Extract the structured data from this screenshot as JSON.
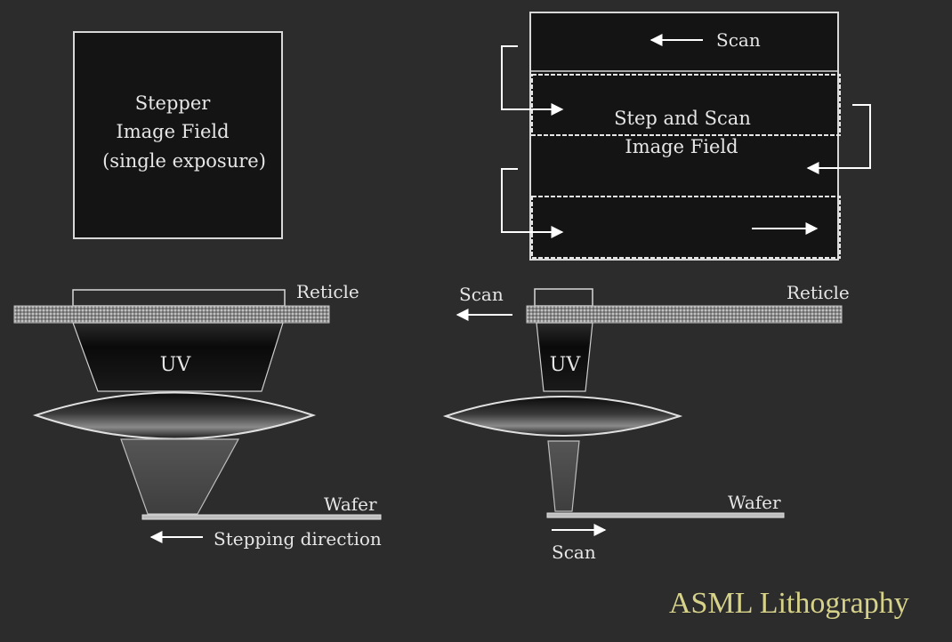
{
  "stepper": {
    "field_label_1": "Stepper",
    "field_label_2": "Image Field",
    "field_label_3": "(single exposure)",
    "reticle_label": "Reticle",
    "uv_label": "UV",
    "wafer_label": "Wafer",
    "stepping_label": "Stepping direction"
  },
  "scanner": {
    "scan_top_label": "Scan",
    "field_label_1": "Step and Scan",
    "field_label_2": "Image Field",
    "scan_reticle_label": "Scan",
    "reticle_label": "Reticle",
    "uv_label": "UV",
    "wafer_label": "Wafer",
    "scan_wafer_label": "Scan"
  },
  "footer": {
    "brand": "ASML Lithography"
  },
  "colors": {
    "background": "#2c2c2c",
    "line": "#d8d8d8",
    "brand": "#d7d28a",
    "reticle": "#9a9a9a"
  }
}
